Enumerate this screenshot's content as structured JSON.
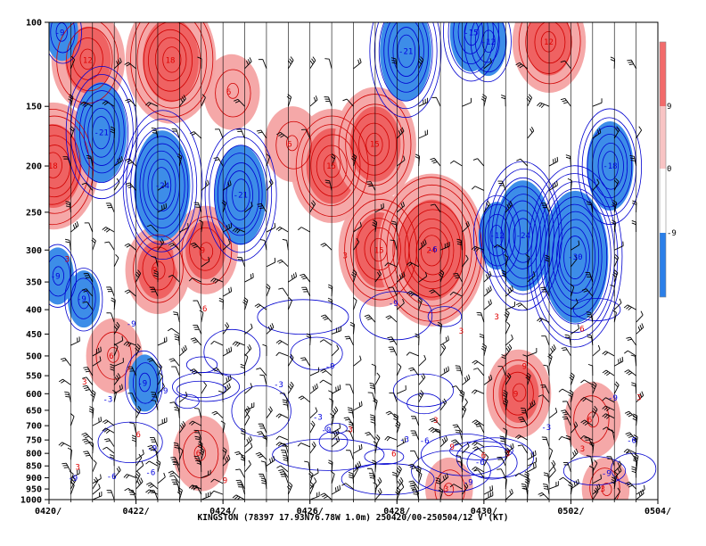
{
  "chart_data": {
    "type": "heatmap",
    "title": "KINGSTON (78397 17.93N76.78W 1.0m) 250420/00-250504/12 V'(KT)",
    "station": "KINGSTON",
    "station_id": "78397",
    "location": "17.93N76.78W 1.0m",
    "period": "250420/00-250504/12",
    "variable": "V'(KT)",
    "x_ticks": [
      "0420/",
      "0422/",
      "0424/",
      "0426/",
      "0428/",
      "0430/",
      "0502/",
      "0504/"
    ],
    "y_ticks": [
      100,
      150,
      200,
      250,
      300,
      350,
      400,
      450,
      500,
      550,
      600,
      650,
      700,
      750,
      800,
      850,
      900,
      950,
      1000
    ],
    "y_axis_type": "log-pressure",
    "ylim": [
      1000,
      100
    ],
    "colorbar": {
      "levels": [
        "9",
        "0",
        "-9"
      ],
      "positive_color": "#f26b6b",
      "negative_color": "#2b7fe8"
    },
    "colors": {
      "positive_fill": "#f4a3a3",
      "positive_strong": "#ee5a5a",
      "negative_fill": "#3d8de8",
      "positive_line": "#d00000",
      "negative_line": "#0000d0"
    },
    "contour_labels_positive": [
      "3",
      "6",
      "9",
      "12",
      "15",
      "18",
      "21",
      "24"
    ],
    "contour_labels_negative": [
      "-3",
      "-6",
      "-9",
      "-12",
      "-15",
      "-18",
      "-21",
      "-24",
      "-30"
    ],
    "positive_cells": [
      {
        "t": 0.1,
        "p": 200,
        "v": 18
      },
      {
        "t": 0.9,
        "p": 120,
        "v": 12
      },
      {
        "t": 2.8,
        "p": 120,
        "v": 18
      },
      {
        "t": 4.2,
        "p": 140,
        "v": 6
      },
      {
        "t": 5.6,
        "p": 180,
        "v": 6
      },
      {
        "t": 6.5,
        "p": 200,
        "v": 15
      },
      {
        "t": 7.5,
        "p": 180,
        "v": 15
      },
      {
        "t": 7.6,
        "p": 300,
        "v": 15
      },
      {
        "t": 8.8,
        "p": 300,
        "v": 24
      },
      {
        "t": 11.5,
        "p": 110,
        "v": 12
      },
      {
        "t": 10.8,
        "p": 600,
        "v": 9
      },
      {
        "t": 12.5,
        "p": 680,
        "v": 6
      },
      {
        "t": 2.5,
        "p": 330,
        "v": 9
      },
      {
        "t": 3.6,
        "p": 300,
        "v": 9
      },
      {
        "t": 1.5,
        "p": 500,
        "v": 6
      },
      {
        "t": 3.5,
        "p": 800,
        "v": 6
      },
      {
        "t": 9.2,
        "p": 950,
        "v": 3
      },
      {
        "t": 12.8,
        "p": 950,
        "v": 3
      }
    ],
    "negative_cells": [
      {
        "t": 0.3,
        "p": 105,
        "v": -9
      },
      {
        "t": 1.2,
        "p": 170,
        "v": -21
      },
      {
        "t": 2.6,
        "p": 220,
        "v": -24
      },
      {
        "t": 4.4,
        "p": 230,
        "v": -21
      },
      {
        "t": 8.2,
        "p": 115,
        "v": -21
      },
      {
        "t": 9.7,
        "p": 105,
        "v": -15
      },
      {
        "t": 10.3,
        "p": 280,
        "v": -12
      },
      {
        "t": 10.9,
        "p": 280,
        "v": -24
      },
      {
        "t": 12.1,
        "p": 310,
        "v": -30
      },
      {
        "t": 12.9,
        "p": 200,
        "v": -18
      },
      {
        "t": 10.1,
        "p": 110,
        "v": -12
      },
      {
        "t": 0.2,
        "p": 340,
        "v": -9
      },
      {
        "t": 0.8,
        "p": 380,
        "v": -9
      },
      {
        "t": 2.2,
        "p": 570,
        "v": -9
      }
    ]
  }
}
